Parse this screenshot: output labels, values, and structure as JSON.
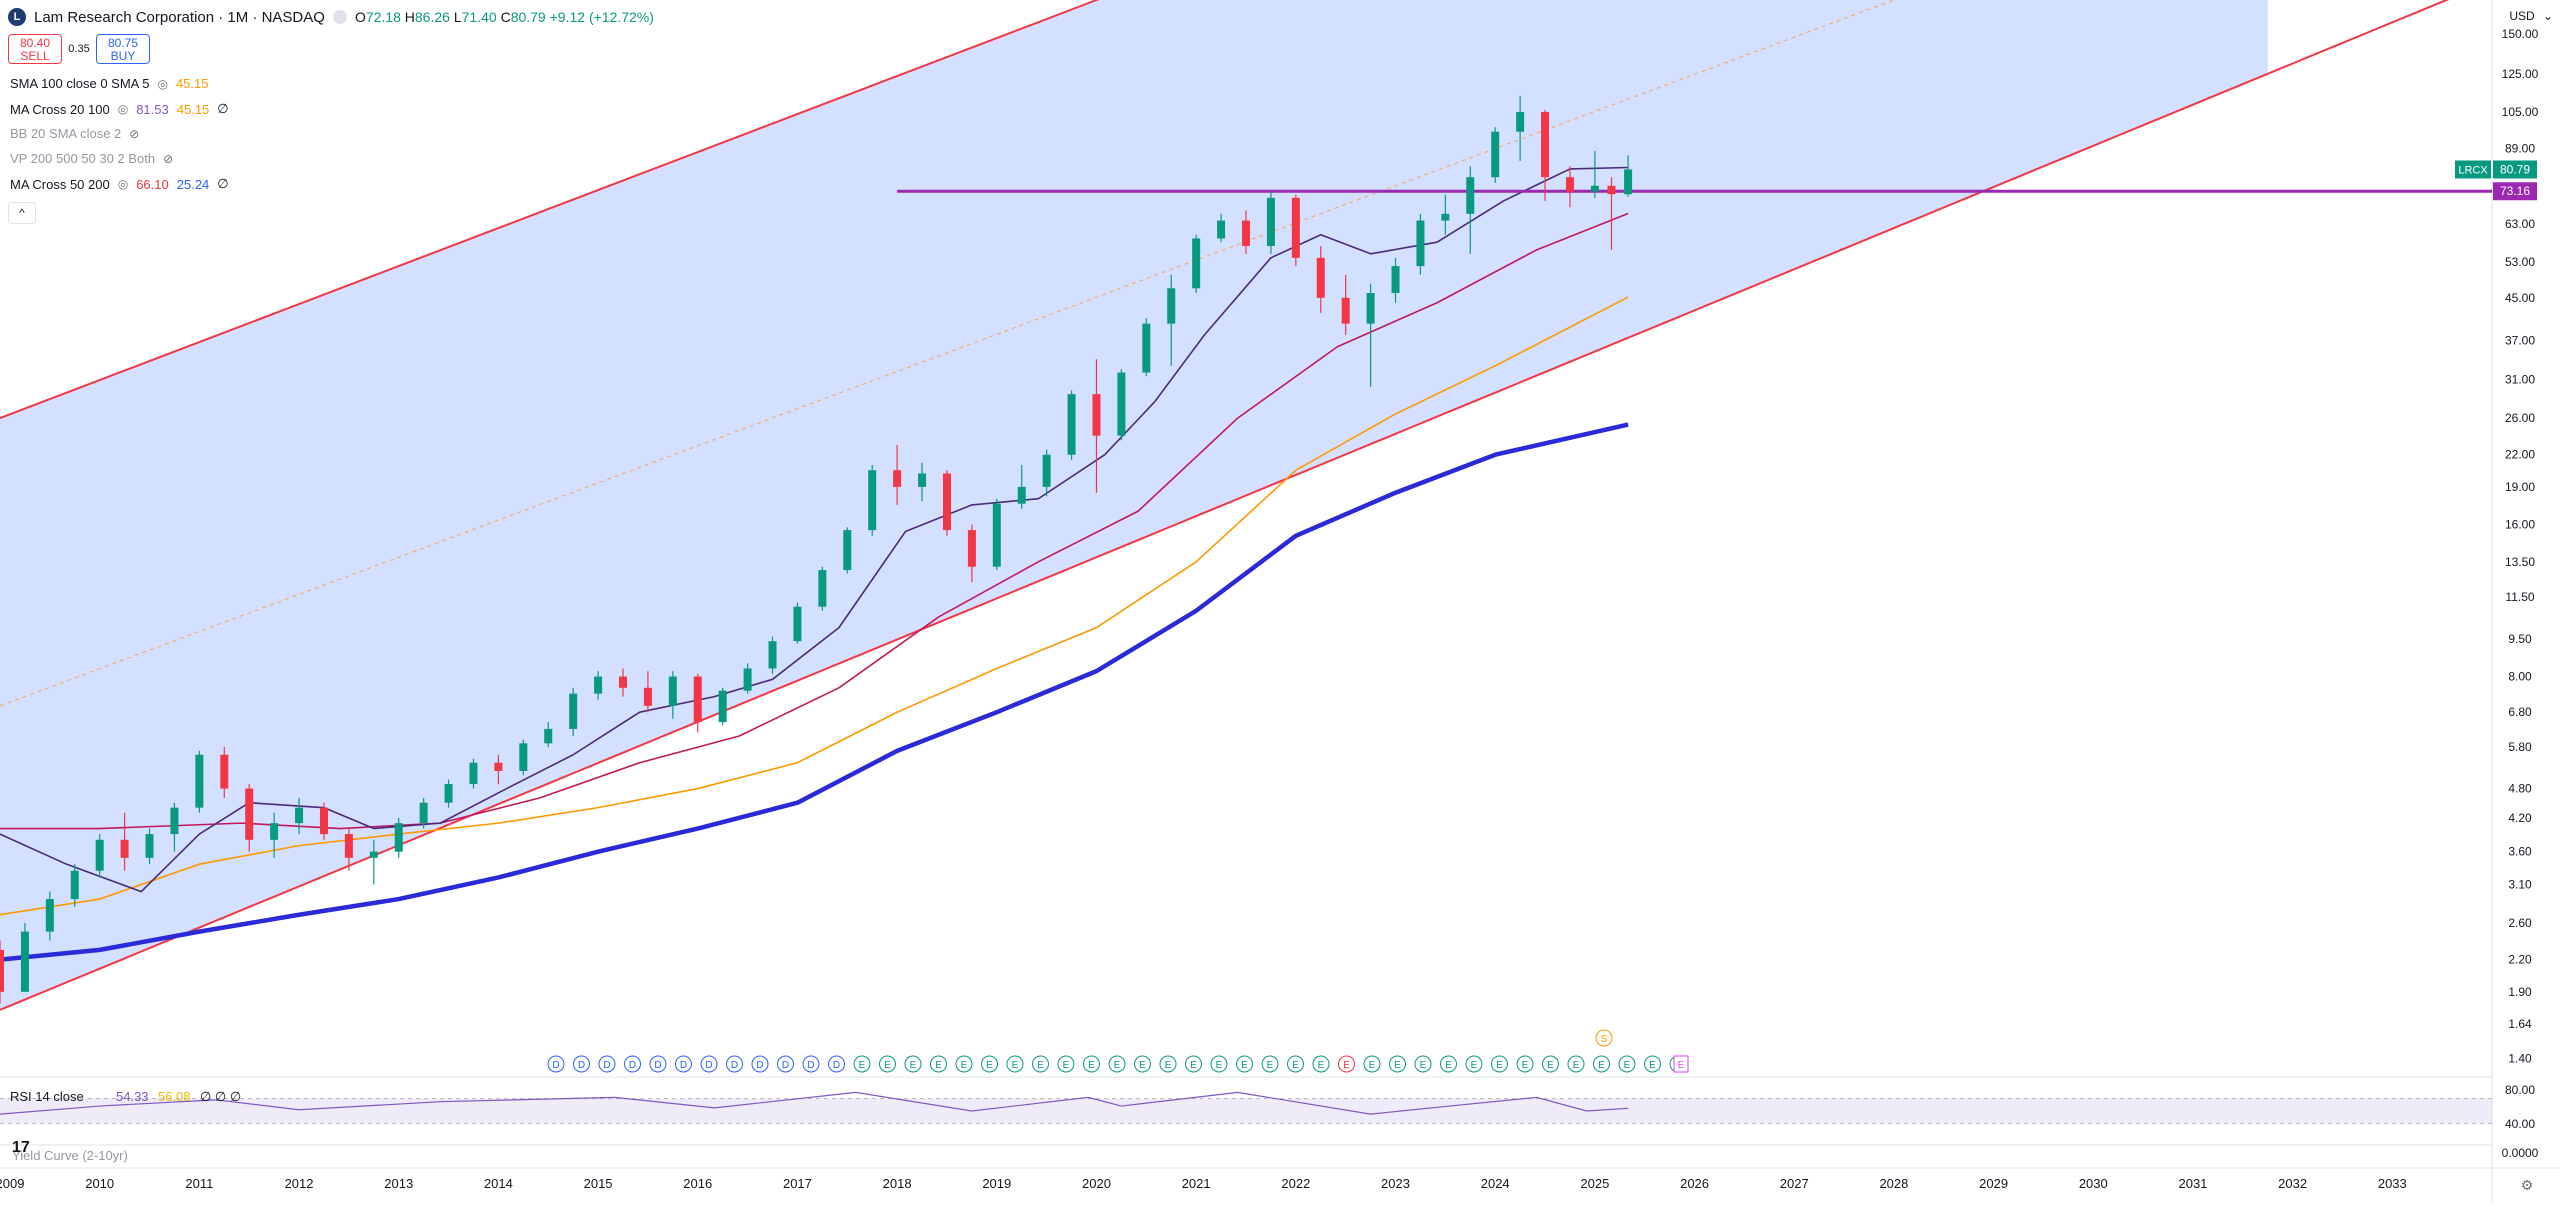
{
  "header": {
    "symbol_title": "Lam Research Corporation · 1M · NASDAQ",
    "logo_letter": "L",
    "ohlc": {
      "o_label": "O",
      "o": "72.18",
      "h_label": "H",
      "h": "86.26",
      "l_label": "L",
      "l": "71.40",
      "c_label": "C",
      "c": "80.79",
      "change": "+9.12 (+12.72%)"
    }
  },
  "trade": {
    "sell_price": "80.40",
    "sell_label": "SELL",
    "spread": "0.35",
    "buy_price": "80.75",
    "buy_label": "BUY"
  },
  "indicators": [
    {
      "name": "SMA 100 close 0 SMA 5",
      "v1": "45.15",
      "v1_color": "#ff9800",
      "v2": "",
      "v3": ""
    },
    {
      "name": "MA Cross 20 100",
      "v1": "81.53",
      "v1_color": "#7e57c2",
      "v2": "45.15",
      "v2_color": "#ff9800",
      "v3": "∅"
    },
    {
      "name": "BB 20 SMA close 2",
      "v1": "",
      "v2": "",
      "v3": "",
      "muted": true
    },
    {
      "name": "VP 200 500 50 30 2 Both",
      "v1": "",
      "v2": "",
      "v3": "",
      "muted": true
    },
    {
      "name": "MA Cross 50 200",
      "v1": "66.10",
      "v1_color": "#f23645",
      "v2": "25.24",
      "v2_color": "#2962ff",
      "v3": "∅"
    }
  ],
  "collapse_glyph": "^",
  "price_axis": {
    "currency": "USD",
    "ticks": [
      "150.00",
      "125.00",
      "105.00",
      "89.00",
      "63.00",
      "53.00",
      "45.00",
      "37.00",
      "31.00",
      "26.00",
      "22.00",
      "19.00",
      "16.00",
      "13.50",
      "11.50",
      "9.50",
      "8.00",
      "6.80",
      "5.80",
      "4.80",
      "4.20",
      "3.60",
      "3.10",
      "2.60",
      "2.20",
      "1.90",
      "1.64",
      "1.40"
    ],
    "last_price_label": "LRCX",
    "last_price": "80.79",
    "hline_price": "73.16",
    "colors": {
      "last": "#089981",
      "hline": "#9c27b0"
    }
  },
  "time_axis": {
    "ticks": [
      "2009",
      "2010",
      "2011",
      "2012",
      "2013",
      "2014",
      "2015",
      "2016",
      "2017",
      "2018",
      "2019",
      "2020",
      "2021",
      "2022",
      "2023",
      "2024",
      "2025",
      "2026",
      "2027",
      "2028",
      "2029",
      "2030",
      "2031",
      "2032",
      "2033"
    ]
  },
  "event_markers": {
    "dividend_letter": "D",
    "earnings_letter": "E",
    "split_letter": "S"
  },
  "rsi_pane": {
    "label": "RSI 14 close",
    "v1": "54.33",
    "v2": "56.08",
    "v3": "∅ ∅ ∅",
    "ticks": [
      "80.00",
      "40.00"
    ]
  },
  "yield_pane": {
    "label": "Yield Curve (2-10yr)",
    "tick": "0.0000"
  },
  "chart_data": {
    "type": "candlestick",
    "title": "Lam Research Corporation · 1M · NASDAQ",
    "scale": "log",
    "ylim": [
      1.3,
      175
    ],
    "xlim": [
      "2009-01",
      "2033-12"
    ],
    "candles": [
      {
        "t": "2009-01",
        "o": 2.3,
        "h": 2.4,
        "l": 1.8,
        "c": 1.9
      },
      {
        "t": "2009-04",
        "o": 1.9,
        "h": 2.6,
        "l": 1.9,
        "c": 2.5
      },
      {
        "t": "2009-07",
        "o": 2.5,
        "h": 3.0,
        "l": 2.4,
        "c": 2.9
      },
      {
        "t": "2009-10",
        "o": 2.9,
        "h": 3.4,
        "l": 2.8,
        "c": 3.3
      },
      {
        "t": "2010-01",
        "o": 3.3,
        "h": 3.9,
        "l": 3.2,
        "c": 3.8
      },
      {
        "t": "2010-04",
        "o": 3.8,
        "h": 4.3,
        "l": 3.3,
        "c": 3.5
      },
      {
        "t": "2010-07",
        "o": 3.5,
        "h": 4.0,
        "l": 3.4,
        "c": 3.9
      },
      {
        "t": "2010-10",
        "o": 3.9,
        "h": 4.5,
        "l": 3.6,
        "c": 4.4
      },
      {
        "t": "2011-01",
        "o": 4.4,
        "h": 5.7,
        "l": 4.3,
        "c": 5.6
      },
      {
        "t": "2011-04",
        "o": 5.6,
        "h": 5.8,
        "l": 4.6,
        "c": 4.8
      },
      {
        "t": "2011-07",
        "o": 4.8,
        "h": 4.9,
        "l": 3.6,
        "c": 3.8
      },
      {
        "t": "2011-10",
        "o": 3.8,
        "h": 4.3,
        "l": 3.5,
        "c": 4.1
      },
      {
        "t": "2012-01",
        "o": 4.1,
        "h": 4.6,
        "l": 3.9,
        "c": 4.4
      },
      {
        "t": "2012-04",
        "o": 4.4,
        "h": 4.5,
        "l": 3.8,
        "c": 3.9
      },
      {
        "t": "2012-07",
        "o": 3.9,
        "h": 4.0,
        "l": 3.3,
        "c": 3.5
      },
      {
        "t": "2012-10",
        "o": 3.5,
        "h": 3.8,
        "l": 3.1,
        "c": 3.6
      },
      {
        "t": "2013-01",
        "o": 3.6,
        "h": 4.2,
        "l": 3.5,
        "c": 4.1
      },
      {
        "t": "2013-04",
        "o": 4.1,
        "h": 4.6,
        "l": 4.0,
        "c": 4.5
      },
      {
        "t": "2013-07",
        "o": 4.5,
        "h": 5.0,
        "l": 4.4,
        "c": 4.9
      },
      {
        "t": "2013-10",
        "o": 4.9,
        "h": 5.5,
        "l": 4.8,
        "c": 5.4
      },
      {
        "t": "2014-01",
        "o": 5.4,
        "h": 5.6,
        "l": 4.9,
        "c": 5.2
      },
      {
        "t": "2014-04",
        "o": 5.2,
        "h": 6.0,
        "l": 5.1,
        "c": 5.9
      },
      {
        "t": "2014-07",
        "o": 5.9,
        "h": 6.5,
        "l": 5.8,
        "c": 6.3
      },
      {
        "t": "2014-10",
        "o": 6.3,
        "h": 7.6,
        "l": 6.1,
        "c": 7.4
      },
      {
        "t": "2015-01",
        "o": 7.4,
        "h": 8.2,
        "l": 7.2,
        "c": 8.0
      },
      {
        "t": "2015-04",
        "o": 8.0,
        "h": 8.3,
        "l": 7.3,
        "c": 7.6
      },
      {
        "t": "2015-07",
        "o": 7.6,
        "h": 8.2,
        "l": 6.8,
        "c": 7.0
      },
      {
        "t": "2015-10",
        "o": 7.0,
        "h": 8.2,
        "l": 6.6,
        "c": 8.0
      },
      {
        "t": "2016-01",
        "o": 8.0,
        "h": 8.1,
        "l": 6.2,
        "c": 6.5
      },
      {
        "t": "2016-04",
        "o": 6.5,
        "h": 7.6,
        "l": 6.4,
        "c": 7.5
      },
      {
        "t": "2016-07",
        "o": 7.5,
        "h": 8.5,
        "l": 7.4,
        "c": 8.3
      },
      {
        "t": "2016-10",
        "o": 8.3,
        "h": 9.6,
        "l": 8.1,
        "c": 9.4
      },
      {
        "t": "2017-01",
        "o": 9.4,
        "h": 11.2,
        "l": 9.3,
        "c": 11.0
      },
      {
        "t": "2017-04",
        "o": 11.0,
        "h": 13.2,
        "l": 10.8,
        "c": 13.0
      },
      {
        "t": "2017-07",
        "o": 13.0,
        "h": 15.8,
        "l": 12.8,
        "c": 15.6
      },
      {
        "t": "2017-10",
        "o": 15.6,
        "h": 21.0,
        "l": 15.2,
        "c": 20.5
      },
      {
        "t": "2018-01",
        "o": 20.5,
        "h": 23.0,
        "l": 17.5,
        "c": 19.0
      },
      {
        "t": "2018-04",
        "o": 19.0,
        "h": 21.2,
        "l": 17.8,
        "c": 20.2
      },
      {
        "t": "2018-07",
        "o": 20.2,
        "h": 20.5,
        "l": 15.2,
        "c": 15.6
      },
      {
        "t": "2018-10",
        "o": 15.6,
        "h": 16.0,
        "l": 12.3,
        "c": 13.2
      },
      {
        "t": "2019-01",
        "o": 13.2,
        "h": 18.0,
        "l": 13.0,
        "c": 17.6
      },
      {
        "t": "2019-04",
        "o": 17.6,
        "h": 21.0,
        "l": 17.2,
        "c": 19.0
      },
      {
        "t": "2019-07",
        "o": 19.0,
        "h": 22.5,
        "l": 18.2,
        "c": 22.0
      },
      {
        "t": "2019-10",
        "o": 22.0,
        "h": 29.5,
        "l": 21.5,
        "c": 29.0
      },
      {
        "t": "2020-01",
        "o": 29.0,
        "h": 34.0,
        "l": 18.5,
        "c": 24.0
      },
      {
        "t": "2020-04",
        "o": 24.0,
        "h": 32.5,
        "l": 23.5,
        "c": 32.0
      },
      {
        "t": "2020-07",
        "o": 32.0,
        "h": 41.0,
        "l": 31.5,
        "c": 40.0
      },
      {
        "t": "2020-10",
        "o": 40.0,
        "h": 50.0,
        "l": 33.0,
        "c": 47.0
      },
      {
        "t": "2021-01",
        "o": 47.0,
        "h": 60.0,
        "l": 46.0,
        "c": 59.0
      },
      {
        "t": "2021-04",
        "o": 59.0,
        "h": 66.0,
        "l": 58.0,
        "c": 64.0
      },
      {
        "t": "2021-07",
        "o": 64.0,
        "h": 67.0,
        "l": 55.0,
        "c": 57.0
      },
      {
        "t": "2021-10",
        "o": 57.0,
        "h": 73.0,
        "l": 55.0,
        "c": 71.0
      },
      {
        "t": "2022-01",
        "o": 71.0,
        "h": 72.0,
        "l": 52.0,
        "c": 54.0
      },
      {
        "t": "2022-04",
        "o": 54.0,
        "h": 57.0,
        "l": 42.0,
        "c": 45.0
      },
      {
        "t": "2022-07",
        "o": 45.0,
        "h": 50.0,
        "l": 38.0,
        "c": 40.0
      },
      {
        "t": "2022-10",
        "o": 40.0,
        "h": 48.0,
        "l": 30.0,
        "c": 46.0
      },
      {
        "t": "2023-01",
        "o": 46.0,
        "h": 54.0,
        "l": 44.0,
        "c": 52.0
      },
      {
        "t": "2023-04",
        "o": 52.0,
        "h": 66.0,
        "l": 50.0,
        "c": 64.0
      },
      {
        "t": "2023-07",
        "o": 64.0,
        "h": 72.0,
        "l": 60.0,
        "c": 66.0
      },
      {
        "t": "2023-10",
        "o": 66.0,
        "h": 82.0,
        "l": 55.0,
        "c": 78.0
      },
      {
        "t": "2024-01",
        "o": 78.0,
        "h": 98.0,
        "l": 76.0,
        "c": 96.0
      },
      {
        "t": "2024-04",
        "o": 96.0,
        "h": 113.0,
        "l": 84.0,
        "c": 105.0
      },
      {
        "t": "2024-07",
        "o": 105.0,
        "h": 106.0,
        "l": 70.0,
        "c": 78.0
      },
      {
        "t": "2024-10",
        "o": 78.0,
        "h": 82.0,
        "l": 68.0,
        "c": 73.0
      },
      {
        "t": "2025-01",
        "o": 73.0,
        "h": 88.0,
        "l": 71.0,
        "c": 75.0
      },
      {
        "t": "2025-03",
        "o": 75.0,
        "h": 78.0,
        "l": 56.0,
        "c": 72.2
      },
      {
        "t": "2025-05",
        "o": 72.18,
        "h": 86.26,
        "l": 71.4,
        "c": 80.79
      }
    ],
    "ma_20": [
      [
        "2009-01",
        3.9
      ],
      [
        "2009-09",
        3.4
      ],
      [
        "2010-06",
        3.0
      ],
      [
        "2011-01",
        3.9
      ],
      [
        "2011-07",
        4.5
      ],
      [
        "2012-04",
        4.4
      ],
      [
        "2012-10",
        4.0
      ],
      [
        "2013-06",
        4.1
      ],
      [
        "2014-02",
        4.8
      ],
      [
        "2014-10",
        5.6
      ],
      [
        "2015-06",
        6.8
      ],
      [
        "2016-03",
        7.3
      ],
      [
        "2016-10",
        7.9
      ],
      [
        "2017-06",
        10.0
      ],
      [
        "2018-02",
        15.5
      ],
      [
        "2018-10",
        17.5
      ],
      [
        "2019-06",
        18.0
      ],
      [
        "2020-02",
        22.0
      ],
      [
        "2020-08",
        28.0
      ],
      [
        "2021-02",
        38.0
      ],
      [
        "2021-10",
        54.0
      ],
      [
        "2022-04",
        60.0
      ],
      [
        "2022-10",
        55.0
      ],
      [
        "2023-06",
        58.0
      ],
      [
        "2024-02",
        70.0
      ],
      [
        "2024-10",
        81.0
      ],
      [
        "2025-05",
        81.53
      ]
    ],
    "ma_50": [
      [
        "2009-01",
        4.0
      ],
      [
        "2010-01",
        4.0
      ],
      [
        "2011-06",
        4.1
      ],
      [
        "2012-06",
        4.0
      ],
      [
        "2013-06",
        4.1
      ],
      [
        "2014-06",
        4.6
      ],
      [
        "2015-06",
        5.4
      ],
      [
        "2016-06",
        6.1
      ],
      [
        "2017-06",
        7.6
      ],
      [
        "2018-06",
        10.5
      ],
      [
        "2019-06",
        13.5
      ],
      [
        "2020-06",
        17.0
      ],
      [
        "2021-06",
        26.0
      ],
      [
        "2022-06",
        36.0
      ],
      [
        "2023-06",
        44.0
      ],
      [
        "2024-06",
        56.0
      ],
      [
        "2025-05",
        66.1
      ]
    ],
    "sma_100": [
      [
        "2009-01",
        2.7
      ],
      [
        "2010-01",
        2.9
      ],
      [
        "2011-01",
        3.4
      ],
      [
        "2012-01",
        3.7
      ],
      [
        "2013-01",
        3.9
      ],
      [
        "2014-01",
        4.1
      ],
      [
        "2015-01",
        4.4
      ],
      [
        "2016-01",
        4.8
      ],
      [
        "2017-01",
        5.4
      ],
      [
        "2018-01",
        6.8
      ],
      [
        "2019-01",
        8.3
      ],
      [
        "2020-01",
        10.0
      ],
      [
        "2021-01",
        13.5
      ],
      [
        "2022-01",
        20.5
      ],
      [
        "2023-01",
        26.5
      ],
      [
        "2024-01",
        33.0
      ],
      [
        "2025-05",
        45.15
      ]
    ],
    "ma_200": [
      [
        "2009-01",
        2.2
      ],
      [
        "2010-01",
        2.3
      ],
      [
        "2011-01",
        2.5
      ],
      [
        "2012-01",
        2.7
      ],
      [
        "2013-01",
        2.9
      ],
      [
        "2014-01",
        3.2
      ],
      [
        "2015-01",
        3.6
      ],
      [
        "2016-01",
        4.0
      ],
      [
        "2017-01",
        4.5
      ],
      [
        "2018-01",
        5.7
      ],
      [
        "2019-01",
        6.8
      ],
      [
        "2020-01",
        8.2
      ],
      [
        "2021-01",
        10.8
      ],
      [
        "2022-01",
        15.2
      ],
      [
        "2023-01",
        18.5
      ],
      [
        "2024-01",
        22.0
      ],
      [
        "2025-05",
        25.24
      ]
    ],
    "channel": {
      "upper": [
        [
          "2009-01",
          26.0
        ],
        [
          "2020-01",
          175.0
        ]
      ],
      "lower": [
        [
          "2009-01",
          1.75
        ],
        [
          "2031-10",
          125.0
        ]
      ],
      "mid_dotted": [
        [
          "2009-01",
          7.0
        ],
        [
          "2028-01",
          175.0
        ]
      ],
      "fill_end": "2031-10"
    },
    "hline": {
      "value": 73.16,
      "from": "2018-01"
    },
    "rsi": {
      "ylim": [
        0,
        100
      ],
      "levels": [
        70,
        30
      ],
      "values": [
        [
          "2009-01",
          45
        ],
        [
          "2010-01",
          58
        ],
        [
          "2011-03",
          68
        ],
        [
          "2012-01",
          52
        ],
        [
          "2013-06",
          65
        ],
        [
          "2015-03",
          72
        ],
        [
          "2016-03",
          55
        ],
        [
          "2017-08",
          80
        ],
        [
          "2018-10",
          50
        ],
        [
          "2019-12",
          72
        ],
        [
          "2020-04",
          58
        ],
        [
          "2021-06",
          80
        ],
        [
          "2022-10",
          45
        ],
        [
          "2023-09",
          60
        ],
        [
          "2024-06",
          72
        ],
        [
          "2024-12",
          50
        ],
        [
          "2025-05",
          54.33
        ]
      ]
    }
  }
}
